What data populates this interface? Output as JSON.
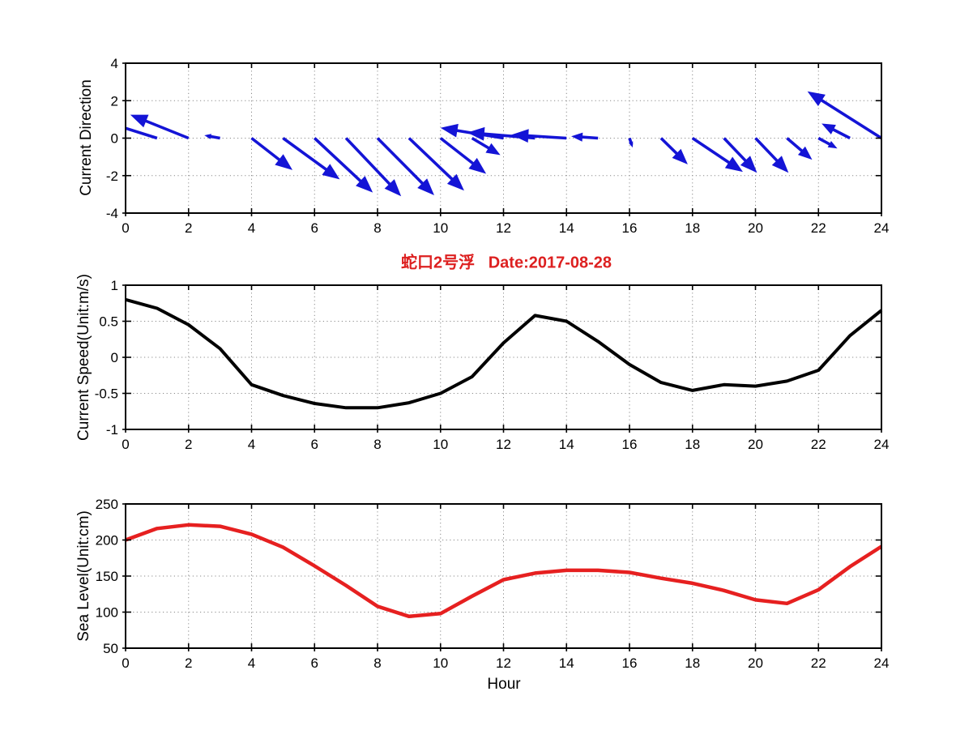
{
  "figure": {
    "background": "#ffffff"
  },
  "chart_data": [
    {
      "type": "quiver",
      "ylabel": "Current Direction",
      "x": [
        0,
        1,
        2,
        3,
        4,
        5,
        6,
        7,
        8,
        9,
        10,
        11,
        12,
        13,
        14,
        15,
        16,
        17,
        18,
        19,
        20,
        21,
        22,
        23,
        24
      ],
      "u": [
        -1.9,
        -1.7,
        -1.85,
        -0.5,
        1.3,
        1.8,
        1.85,
        1.75,
        1.8,
        1.75,
        1.45,
        0.9,
        -2.0,
        -2.15,
        -1.75,
        -0.85,
        0.1,
        0.85,
        1.6,
        1.05,
        1.05,
        0.8,
        0.6,
        -0.9,
        -2.35
      ],
      "v": [
        1.2,
        0.9,
        1.25,
        0.15,
        -1.7,
        -2.2,
        -2.9,
        -3.1,
        -3.05,
        -2.8,
        -1.9,
        -0.9,
        0.55,
        0.3,
        0.18,
        0.1,
        -0.5,
        -1.4,
        -1.8,
        -1.85,
        -1.85,
        -1.15,
        -0.55,
        0.78,
        2.5
      ],
      "xlim": [
        0,
        24
      ],
      "ylim": [
        -4,
        4
      ],
      "xticks": [
        0,
        2,
        4,
        6,
        8,
        10,
        12,
        14,
        16,
        18,
        20,
        22,
        24
      ],
      "yticks": [
        -4,
        -2,
        0,
        2,
        4
      ],
      "grid": true,
      "color": "#1414d6"
    },
    {
      "type": "line",
      "title": "蛇口2号浮   Date:2017-08-28",
      "title_color": "#dd2020",
      "ylabel": "Current Speed(Unit:m/s)",
      "x": [
        0,
        1,
        2,
        3,
        4,
        5,
        6,
        7,
        8,
        9,
        10,
        11,
        12,
        13,
        14,
        15,
        16,
        17,
        18,
        19,
        20,
        21,
        22,
        23,
        24
      ],
      "y": [
        0.8,
        0.68,
        0.45,
        0.12,
        -0.38,
        -0.53,
        -0.64,
        -0.7,
        -0.7,
        -0.63,
        -0.5,
        -0.27,
        0.2,
        0.58,
        0.5,
        0.22,
        -0.1,
        -0.35,
        -0.46,
        -0.38,
        -0.4,
        -0.33,
        -0.18,
        0.3,
        0.65
      ],
      "xlim": [
        0,
        24
      ],
      "ylim": [
        -1,
        1
      ],
      "xticks": [
        0,
        2,
        4,
        6,
        8,
        10,
        12,
        14,
        16,
        18,
        20,
        22,
        24
      ],
      "yticks": [
        -1,
        -0.5,
        0,
        0.5,
        1
      ],
      "grid": true,
      "color": "#000000",
      "line_width": 4
    },
    {
      "type": "line",
      "ylabel": "Sea Level(Unit:cm)",
      "xlabel": "Hour",
      "x": [
        0,
        1,
        2,
        3,
        4,
        5,
        6,
        7,
        8,
        9,
        10,
        11,
        12,
        13,
        14,
        15,
        16,
        17,
        18,
        19,
        20,
        21,
        22,
        23,
        24
      ],
      "y": [
        200,
        216,
        221,
        219,
        208,
        190,
        164,
        137,
        108,
        94,
        98,
        122,
        145,
        154,
        158,
        158,
        155,
        147,
        140,
        130,
        117,
        112,
        131,
        163,
        191
      ],
      "xlim": [
        0,
        24
      ],
      "ylim": [
        50,
        250
      ],
      "xticks": [
        0,
        2,
        4,
        6,
        8,
        10,
        12,
        14,
        16,
        18,
        20,
        22,
        24
      ],
      "yticks": [
        50,
        100,
        150,
        200,
        250
      ],
      "grid": true,
      "color": "#e62020",
      "line_width": 4.5
    }
  ]
}
